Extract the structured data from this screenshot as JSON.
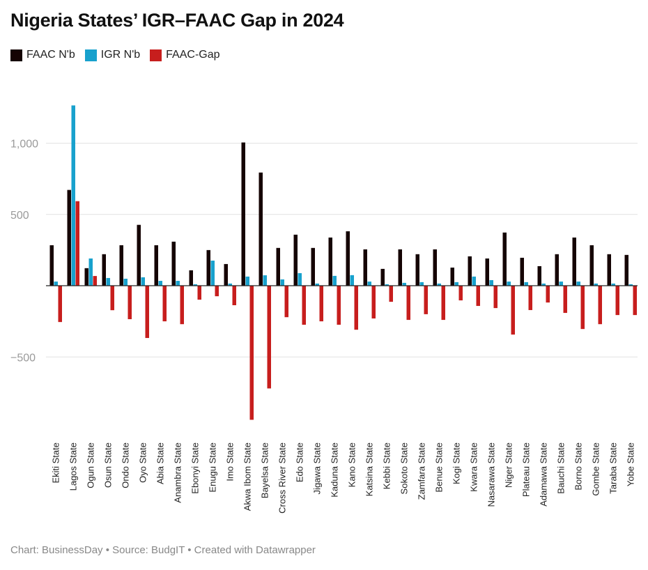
{
  "chart_data": {
    "type": "bar",
    "title": "Nigeria States’ IGR–FAAC Gap in 2024",
    "xlabel": "",
    "ylabel": "",
    "ylim": [
      -1000,
      1300
    ],
    "yticks": [
      1000,
      500,
      0,
      -500
    ],
    "ytick_labels": [
      "1,000",
      "500",
      "",
      "−500"
    ],
    "grid": true,
    "legend_position": "top-left",
    "categories": [
      "Ekiti State",
      "Lagos State",
      "Ogun State",
      "Osun State",
      "Ondo State",
      "Oyo State",
      "Abia State",
      "Anambra State",
      "Ebonyi State",
      "Enugu State",
      "Imo State",
      "Akwa Ibom State",
      "Bayelsa State",
      "Cross River State",
      "Edo State",
      "Jigawa State",
      "Kaduna State",
      "Kano State",
      "Katsina State",
      "Kebbi State",
      "Sokoto State",
      "Zamfara State",
      "Benue State",
      "Kogi State",
      "Kwara State",
      "Nasarawa State",
      "Niger State",
      "Plateau State",
      "Adamawa State",
      "Bauchi State",
      "Borno State",
      "Gombe State",
      "Taraba State",
      "Yobe State"
    ],
    "series": [
      {
        "name": "FAAC N'b",
        "color": "#150404",
        "values": [
          284,
          672,
          123,
          221,
          284,
          427,
          284,
          309,
          108,
          250,
          152,
          1005,
          794,
          265,
          358,
          265,
          338,
          382,
          255,
          118,
          255,
          221,
          255,
          127,
          206,
          191,
          373,
          196,
          137,
          221,
          338,
          284,
          221,
          216
        ]
      },
      {
        "name": "IGR N'b",
        "color": "#18a1cd",
        "values": [
          29,
          1265,
          191,
          54,
          49,
          59,
          34,
          34,
          10,
          176,
          15,
          64,
          73,
          44,
          88,
          15,
          69,
          74,
          29,
          10,
          20,
          25,
          15,
          25,
          64,
          39,
          29,
          25,
          15,
          29,
          29,
          15,
          15,
          10
        ]
      },
      {
        "name": "FAAC-Gap",
        "color": "#c71e1d",
        "values": [
          -255,
          593,
          68,
          -172,
          -235,
          -367,
          -250,
          -270,
          -98,
          -74,
          -137,
          -941,
          -721,
          -221,
          -274,
          -250,
          -274,
          -309,
          -230,
          -113,
          -240,
          -200,
          -240,
          -103,
          -142,
          -157,
          -343,
          -171,
          -118,
          -191,
          -304,
          -270,
          -206,
          -206
        ]
      }
    ]
  },
  "footer": "Chart: BusinessDay • Source: BudgIT • Created with Datawrapper"
}
